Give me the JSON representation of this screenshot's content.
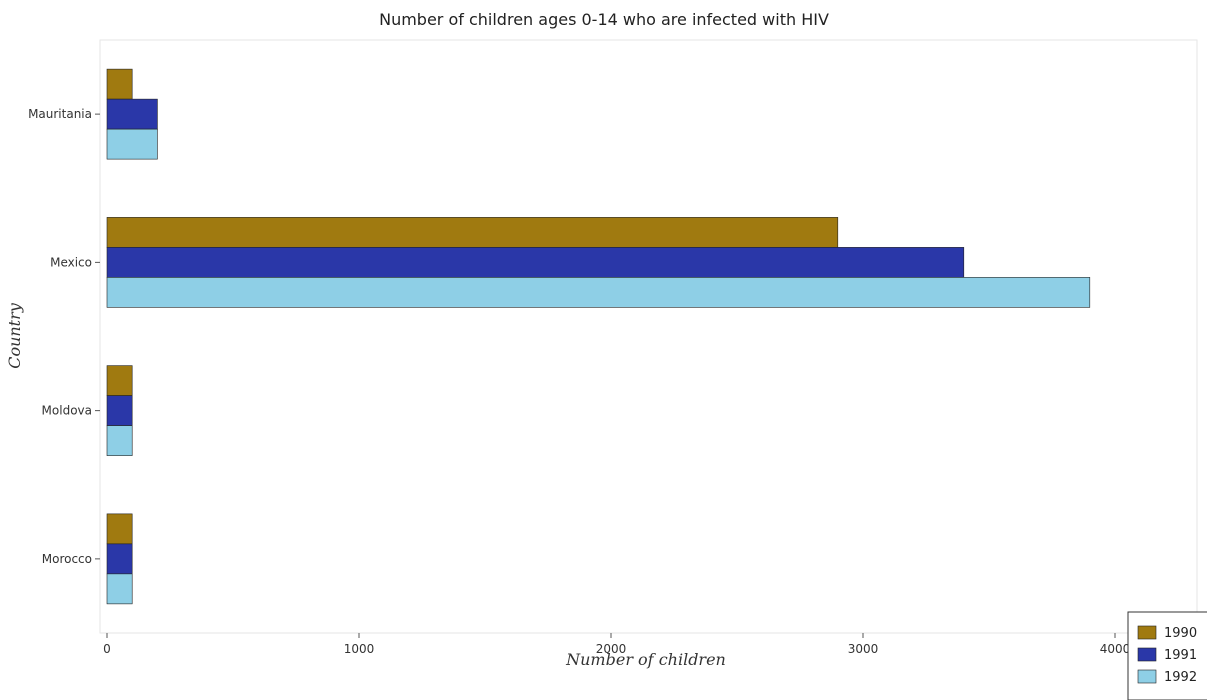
{
  "chart_data": {
    "type": "bar",
    "orientation": "horizontal",
    "title": "Number of children ages 0-14 who are infected with HIV",
    "xlabel": "Number of children",
    "ylabel": "Country",
    "categories": [
      "Mauritania",
      "Mexico",
      "Moldova",
      "Morocco"
    ],
    "series": [
      {
        "name": "1990",
        "color": "#a07a10",
        "values": [
          100,
          2900,
          100,
          100
        ]
      },
      {
        "name": "1991",
        "color": "#2a37a8",
        "values": [
          200,
          3400,
          100,
          100
        ]
      },
      {
        "name": "1992",
        "color": "#8ecfe6",
        "values": [
          200,
          3900,
          100,
          100
        ]
      }
    ],
    "xlim": [
      0,
      4350
    ],
    "xticks": [
      0,
      1000,
      2000,
      3000,
      4000
    ],
    "grid": false,
    "legend_position": "bottom-right"
  }
}
